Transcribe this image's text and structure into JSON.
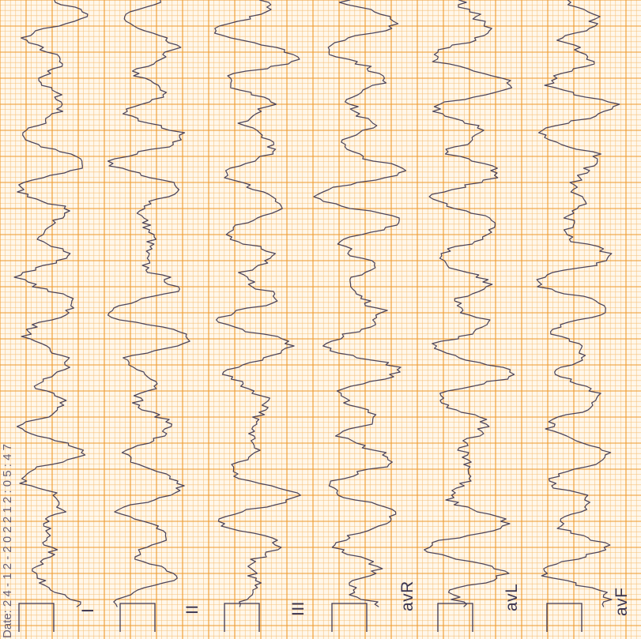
{
  "header": {
    "date_text": "Date: 2 4 - 1 2 - 2 0 2 2   1 2 : 0 5 : 4 7"
  },
  "leads": [
    {
      "label": "I"
    },
    {
      "label": "II"
    },
    {
      "label": "III"
    },
    {
      "label": "avR"
    },
    {
      "label": "avL"
    },
    {
      "label": "avF"
    }
  ],
  "colors": {
    "paper": "#fff7ea",
    "grid_minor": "#f6c07a",
    "grid_major": "#ee9a2e",
    "trace": "#3e3650"
  },
  "orientation": "rotated 90 degrees counter-clockwise"
}
